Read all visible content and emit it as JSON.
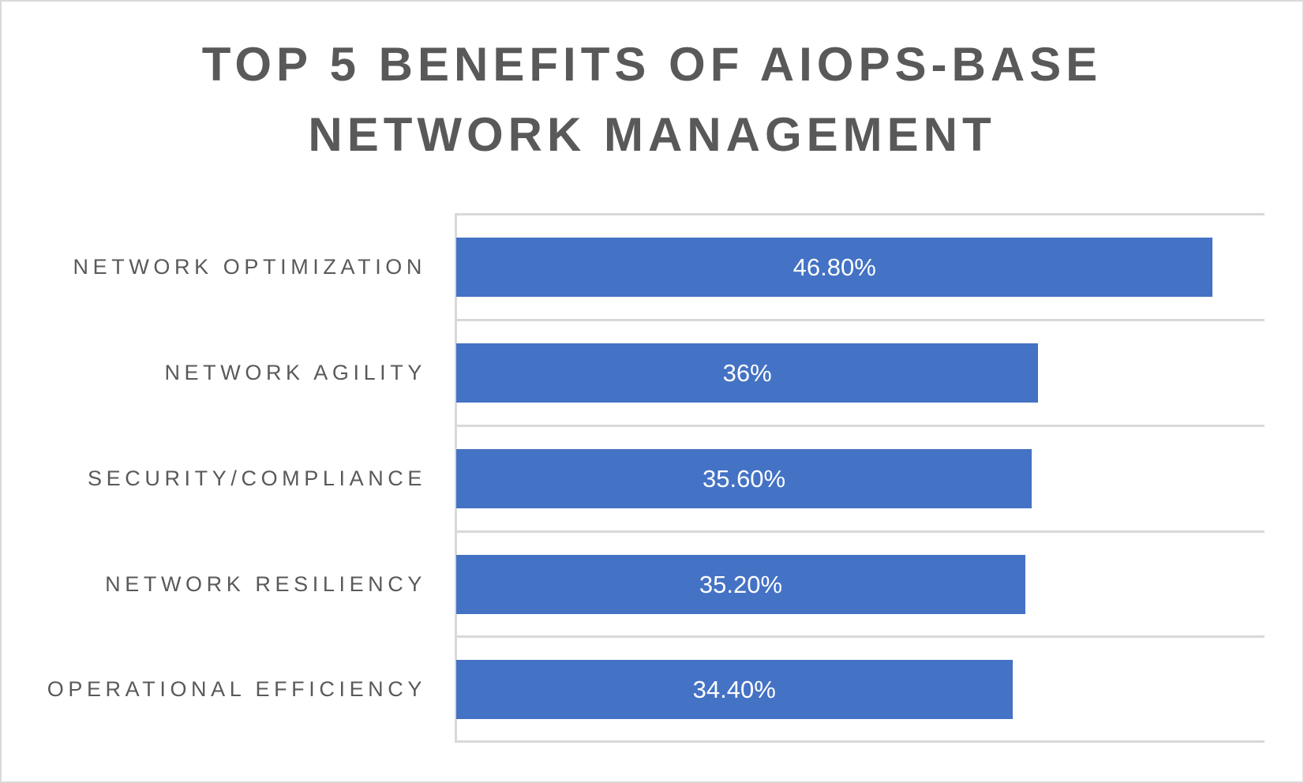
{
  "chart_data": {
    "type": "bar",
    "orientation": "horizontal",
    "title": "TOP 5 BENEFITS OF AIOPS-BASE NETWORK MANAGEMENT",
    "title_lines": [
      "TOP 5 BENEFITS OF AIOPS-BASE",
      "NETWORK MANAGEMENT"
    ],
    "xlabel": "",
    "ylabel": "",
    "categories": [
      "NETWORK OPTIMIZATION",
      "NETWORK AGILITY",
      "SECURITY/COMPLIANCE",
      "NETWORK RESILIENCY",
      "OPERATIONAL EFFICIENCY"
    ],
    "values": [
      46.8,
      36.0,
      35.6,
      35.2,
      34.4
    ],
    "value_labels": [
      "46.80%",
      "36%",
      "35.60%",
      "35.20%",
      "34.40%"
    ],
    "xlim": [
      0,
      50
    ],
    "grid": true,
    "legend": "none",
    "bar_color": "#4472C4",
    "text_color": "#595959",
    "grid_color": "#D9D9D9"
  }
}
